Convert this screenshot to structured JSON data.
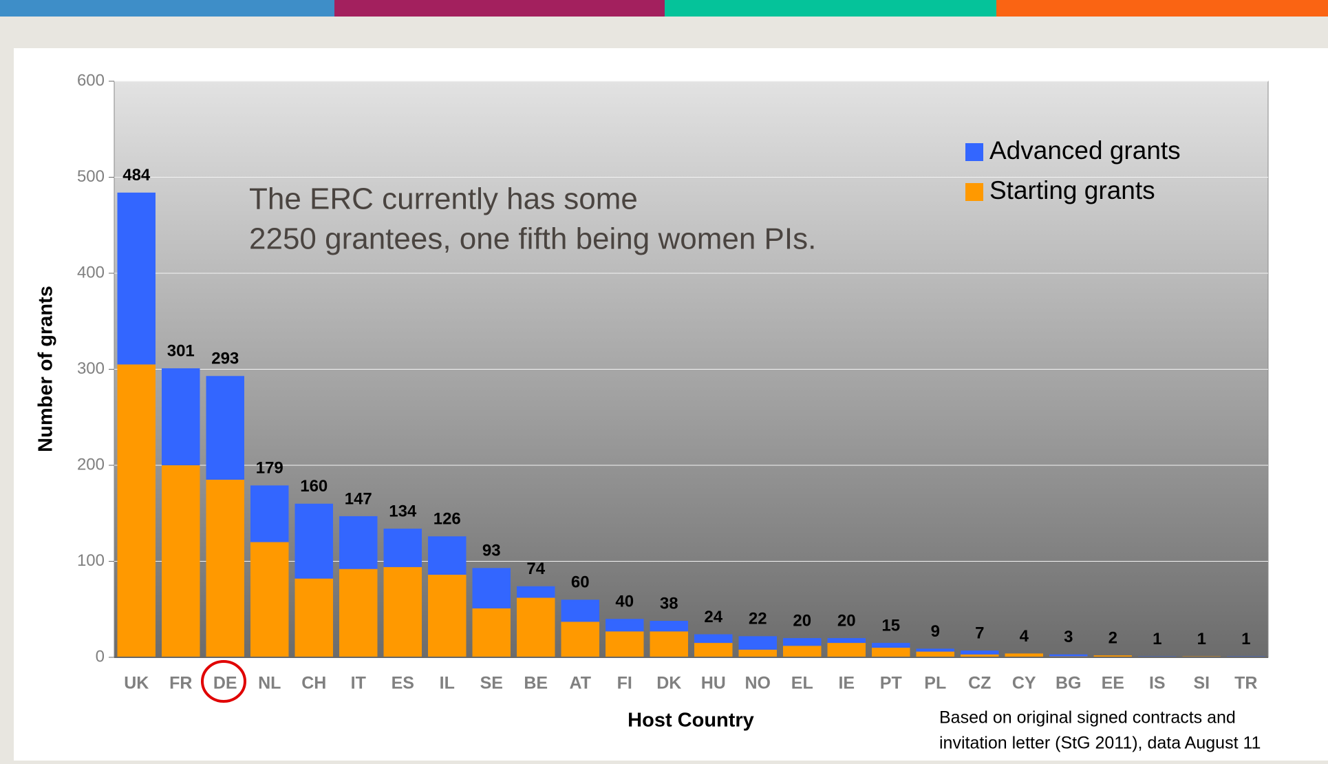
{
  "chart_data": {
    "type": "stacked_bar",
    "annotation": [
      "The ERC currently has some",
      "2250 grantees, one fifth being women PIs."
    ],
    "note": [
      "Based on original signed contracts and",
      "invitation letter (StG 2011), data August 11"
    ],
    "x_label": "Host Country",
    "y_label": "Number of grants",
    "categories": [
      "UK",
      "FR",
      "DE",
      "NL",
      "CH",
      "IT",
      "ES",
      "IL",
      "SE",
      "BE",
      "AT",
      "FI",
      "DK",
      "HU",
      "NO",
      "EL",
      "IE",
      "PT",
      "PL",
      "CZ",
      "CY",
      "BG",
      "EE",
      "IS",
      "SI",
      "TR"
    ],
    "series": [
      {
        "name": "Advanced grants",
        "color": "#3366ff",
        "values": [
          179,
          101,
          108,
          59,
          78,
          55,
          40,
          40,
          42,
          12,
          23,
          13,
          11,
          9,
          14,
          8,
          5,
          5,
          3,
          4,
          0,
          2,
          0,
          1,
          0,
          1
        ]
      },
      {
        "name": "Starting grants",
        "color": "#ff9900",
        "values": [
          305,
          200,
          185,
          120,
          82,
          92,
          94,
          86,
          51,
          62,
          37,
          27,
          27,
          15,
          8,
          12,
          15,
          10,
          6,
          3,
          4,
          1,
          2,
          0,
          1,
          0
        ]
      }
    ],
    "totals": [
      484,
      301,
      293,
      179,
      160,
      147,
      134,
      126,
      93,
      74,
      60,
      40,
      38,
      24,
      22,
      20,
      20,
      15,
      9,
      7,
      4,
      3,
      2,
      1,
      1,
      1
    ],
    "ylim": [
      0,
      600
    ],
    "yticks": [
      0,
      100,
      200,
      300,
      400,
      500,
      600
    ],
    "grid": true,
    "legend": "upper right"
  }
}
